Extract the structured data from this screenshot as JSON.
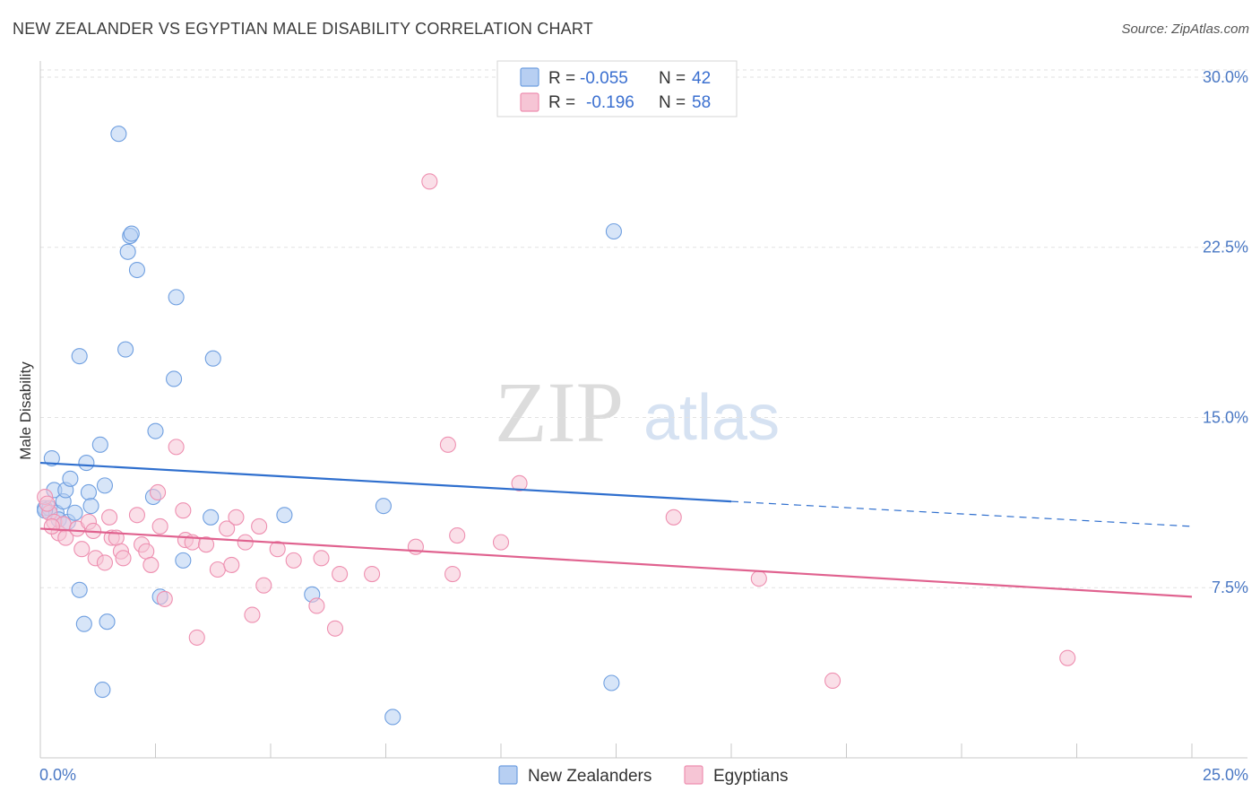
{
  "chart_data": {
    "type": "scatter",
    "title": "NEW ZEALANDER VS EGYPTIAN MALE DISABILITY CORRELATION CHART",
    "source": "Source: ZipAtlas.com",
    "xlabel": "",
    "ylabel": "Male Disability",
    "xlim": [
      0,
      25
    ],
    "ylim": [
      0,
      31.5
    ],
    "x_tick_labels": [
      "0.0%",
      "25.0%"
    ],
    "y_ticks": [
      7.5,
      15.0,
      22.5,
      30.0
    ],
    "y_tick_labels": [
      "7.5%",
      "15.0%",
      "22.5%",
      "30.0%"
    ],
    "watermark": {
      "zip": "ZIP",
      "atlas": "atlas"
    },
    "legend": [
      {
        "r_label": "R =",
        "r_value": "-0.055",
        "n_label": "N =",
        "n_value": "42"
      },
      {
        "r_label": "R =",
        "r_value": "-0.196",
        "n_label": "N =",
        "n_value": "58"
      }
    ],
    "series": [
      {
        "name": "New Zealanders",
        "color": "#6f9fe0",
        "fill": "#b7cff2",
        "line_color": "#2f6fce",
        "trend": {
          "x0": 0.0,
          "y0": 13.0,
          "x1": 15.0,
          "y1": 11.3,
          "dash_to_x": 25.0,
          "dash_to_y": 10.2
        },
        "points": [
          [
            0.1,
            11.0
          ],
          [
            0.2,
            11.0
          ],
          [
            0.25,
            13.2
          ],
          [
            0.3,
            11.8
          ],
          [
            0.35,
            10.8
          ],
          [
            0.4,
            10.5
          ],
          [
            0.5,
            11.3
          ],
          [
            0.55,
            11.8
          ],
          [
            0.6,
            10.4
          ],
          [
            0.65,
            12.3
          ],
          [
            0.75,
            10.8
          ],
          [
            0.85,
            7.4
          ],
          [
            0.85,
            17.7
          ],
          [
            0.95,
            5.9
          ],
          [
            1.0,
            13.0
          ],
          [
            1.05,
            11.7
          ],
          [
            1.1,
            11.1
          ],
          [
            1.3,
            13.8
          ],
          [
            1.35,
            3.0
          ],
          [
            1.4,
            12.0
          ],
          [
            1.45,
            6.0
          ],
          [
            1.7,
            27.5
          ],
          [
            1.85,
            18.0
          ],
          [
            1.9,
            22.3
          ],
          [
            1.95,
            23.0
          ],
          [
            1.98,
            23.1
          ],
          [
            2.1,
            21.5
          ],
          [
            2.45,
            11.5
          ],
          [
            2.5,
            14.4
          ],
          [
            2.6,
            7.1
          ],
          [
            2.9,
            16.7
          ],
          [
            2.95,
            20.3
          ],
          [
            3.1,
            8.7
          ],
          [
            3.7,
            10.6
          ],
          [
            3.75,
            17.6
          ],
          [
            5.3,
            10.7
          ],
          [
            5.9,
            7.2
          ],
          [
            7.45,
            11.1
          ],
          [
            7.65,
            1.8
          ],
          [
            12.4,
            3.3
          ],
          [
            12.45,
            23.2
          ],
          [
            0.1,
            10.9
          ]
        ]
      },
      {
        "name": "Egyptians",
        "color": "#ee8fb0",
        "fill": "#f6c5d5",
        "line_color": "#e0628f",
        "trend": {
          "x0": 0.0,
          "y0": 10.1,
          "x1": 25.0,
          "y1": 7.1
        },
        "points": [
          [
            0.1,
            11.5
          ],
          [
            0.2,
            10.8
          ],
          [
            0.3,
            10.4
          ],
          [
            0.4,
            9.9
          ],
          [
            0.5,
            10.3
          ],
          [
            0.55,
            9.7
          ],
          [
            0.8,
            10.1
          ],
          [
            0.9,
            9.2
          ],
          [
            1.05,
            10.4
          ],
          [
            1.15,
            10.0
          ],
          [
            1.2,
            8.8
          ],
          [
            1.4,
            8.6
          ],
          [
            1.5,
            10.6
          ],
          [
            1.55,
            9.7
          ],
          [
            1.65,
            9.7
          ],
          [
            1.75,
            9.1
          ],
          [
            1.8,
            8.8
          ],
          [
            2.1,
            10.7
          ],
          [
            2.2,
            9.4
          ],
          [
            2.3,
            9.1
          ],
          [
            2.4,
            8.5
          ],
          [
            2.55,
            11.7
          ],
          [
            2.6,
            10.2
          ],
          [
            2.7,
            7.0
          ],
          [
            2.95,
            13.7
          ],
          [
            3.1,
            10.9
          ],
          [
            3.15,
            9.6
          ],
          [
            3.3,
            9.5
          ],
          [
            3.4,
            5.3
          ],
          [
            3.6,
            9.4
          ],
          [
            3.85,
            8.3
          ],
          [
            4.05,
            10.1
          ],
          [
            4.15,
            8.5
          ],
          [
            4.25,
            10.6
          ],
          [
            4.45,
            9.5
          ],
          [
            4.6,
            6.3
          ],
          [
            4.75,
            10.2
          ],
          [
            4.85,
            7.6
          ],
          [
            5.15,
            9.2
          ],
          [
            5.5,
            8.7
          ],
          [
            6.0,
            6.7
          ],
          [
            6.1,
            8.8
          ],
          [
            6.4,
            5.7
          ],
          [
            6.5,
            8.1
          ],
          [
            7.2,
            8.1
          ],
          [
            8.15,
            9.3
          ],
          [
            8.45,
            25.4
          ],
          [
            8.85,
            13.8
          ],
          [
            8.95,
            8.1
          ],
          [
            9.05,
            9.8
          ],
          [
            10.0,
            9.5
          ],
          [
            10.4,
            12.1
          ],
          [
            13.75,
            10.6
          ],
          [
            15.6,
            7.9
          ],
          [
            17.2,
            3.4
          ],
          [
            22.3,
            4.4
          ],
          [
            0.25,
            10.2
          ],
          [
            0.15,
            11.2
          ]
        ]
      }
    ]
  }
}
